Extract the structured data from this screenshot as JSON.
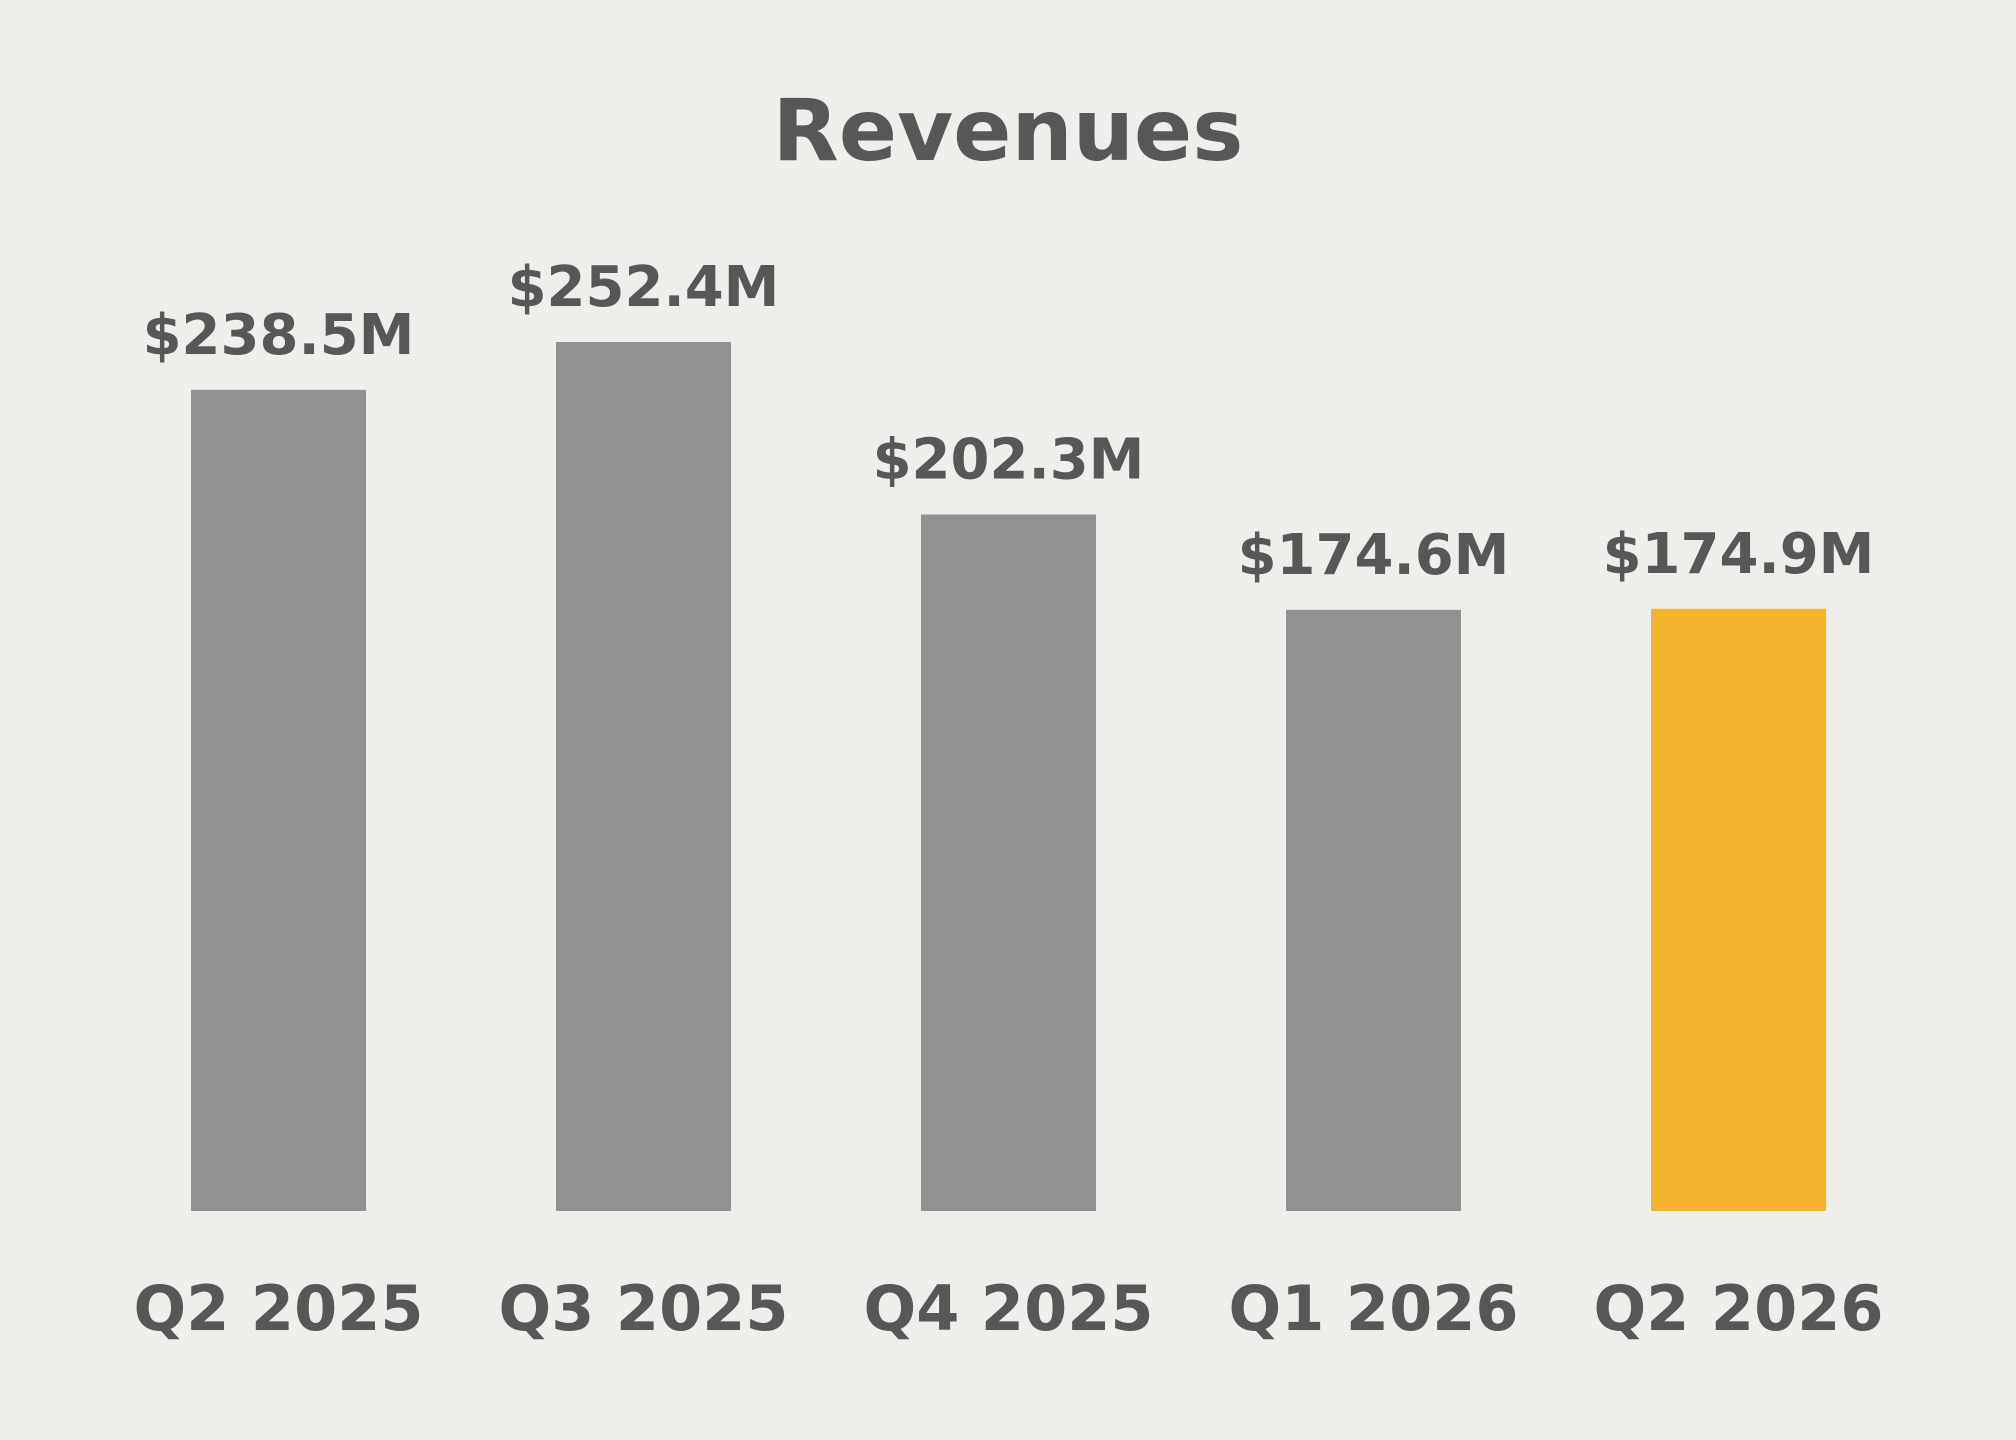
{
  "chart_data": {
    "type": "bar",
    "title": "Revenues",
    "categories": [
      "Q2 2025",
      "Q3 2025",
      "Q4 2025",
      "Q1 2026",
      "Q2 2026"
    ],
    "values": [
      238.5,
      252.4,
      202.3,
      174.6,
      174.9
    ],
    "value_labels": [
      "$238.5M",
      "$252.4M",
      "$202.3M",
      "$174.6M",
      "$174.9M"
    ],
    "unit": "$M",
    "ylim": [
      0,
      252.4
    ],
    "grid": false,
    "legend": "none",
    "colors": {
      "default_bar": "#919191",
      "highlight_bar": "#f2b42a",
      "text": "#575757",
      "background": "#efeeea"
    },
    "highlight_index": 4
  }
}
